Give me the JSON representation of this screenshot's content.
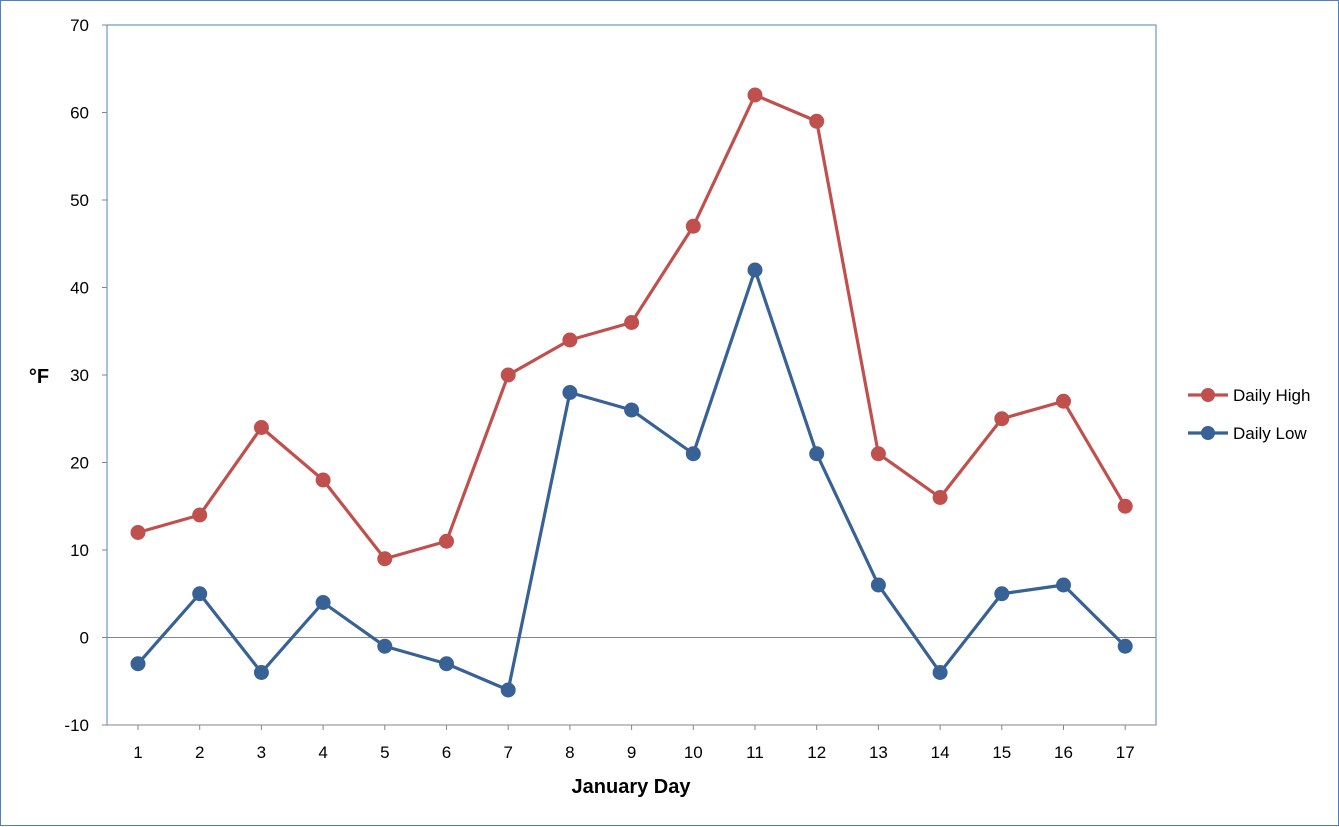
{
  "chart_data": {
    "type": "line",
    "xlabel": "January Day",
    "ylabel": "°F",
    "ylim": [
      -10,
      70
    ],
    "yticks": [
      -10,
      0,
      10,
      20,
      30,
      40,
      50,
      60,
      70
    ],
    "categories": [
      "1",
      "2",
      "3",
      "4",
      "5",
      "6",
      "7",
      "8",
      "9",
      "10",
      "11",
      "12",
      "13",
      "14",
      "15",
      "16",
      "17"
    ],
    "grid": false,
    "legend_position": "right",
    "series": [
      {
        "name": "Daily High",
        "color": "#c0504d",
        "values": [
          12,
          14,
          24,
          18,
          9,
          11,
          30,
          34,
          36,
          47,
          62,
          59,
          21,
          16,
          25,
          27,
          15
        ]
      },
      {
        "name": "Daily Low",
        "color": "#386195",
        "values": [
          -3,
          5,
          -4,
          4,
          -1,
          -3,
          -6,
          28,
          26,
          21,
          42,
          21,
          6,
          -4,
          5,
          6,
          -1
        ]
      }
    ]
  }
}
